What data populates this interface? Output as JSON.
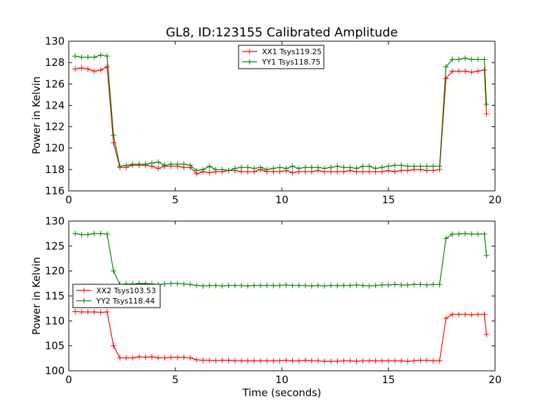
{
  "chart_data": [
    {
      "type": "line",
      "title": "GL8, ID:123155 Calibrated Amplitude",
      "xlabel": "",
      "ylabel": "Power in Kelvin",
      "xlim": [
        0,
        20
      ],
      "ylim": [
        116,
        130
      ],
      "xticks": [
        "0",
        "5",
        "10",
        "15",
        "20"
      ],
      "yticks": [
        "116",
        "118",
        "120",
        "122",
        "124",
        "126",
        "128",
        "130"
      ],
      "grid": false,
      "legend": "top-center",
      "x": [
        0.3,
        0.6,
        0.9,
        1.2,
        1.5,
        1.8,
        2.1,
        2.4,
        2.7,
        3.0,
        3.3,
        3.6,
        3.9,
        4.2,
        4.5,
        4.8,
        5.1,
        5.4,
        5.7,
        6.0,
        6.3,
        6.6,
        6.9,
        7.2,
        7.5,
        7.8,
        8.1,
        8.4,
        8.7,
        9.0,
        9.3,
        9.6,
        9.9,
        10.2,
        10.5,
        10.8,
        11.1,
        11.4,
        11.7,
        12.0,
        12.3,
        12.6,
        12.9,
        13.2,
        13.5,
        13.8,
        14.1,
        14.4,
        14.7,
        15.0,
        15.3,
        15.6,
        15.9,
        16.2,
        16.5,
        16.8,
        17.1,
        17.4,
        17.7,
        18.0,
        18.3,
        18.6,
        18.9,
        19.2,
        19.5,
        19.6
      ],
      "series": [
        {
          "name": "XX1 Tsys119.25",
          "color": "#ff0000",
          "values": [
            127.4,
            127.5,
            127.4,
            127.2,
            127.3,
            127.6,
            120.5,
            118.2,
            118.2,
            118.4,
            118.4,
            118.4,
            118.3,
            118.1,
            118.3,
            118.3,
            118.3,
            118.2,
            118.2,
            117.6,
            117.8,
            117.7,
            117.8,
            117.8,
            117.9,
            117.9,
            117.8,
            117.8,
            117.8,
            118.0,
            117.8,
            117.8,
            117.8,
            117.9,
            117.7,
            117.8,
            117.8,
            117.8,
            117.9,
            117.8,
            117.8,
            117.8,
            117.8,
            117.9,
            117.8,
            117.8,
            117.8,
            117.8,
            117.8,
            117.9,
            117.8,
            117.9,
            117.9,
            118.0,
            118.0,
            117.9,
            117.9,
            118.0,
            126.5,
            127.2,
            127.2,
            127.2,
            127.1,
            127.2,
            127.3,
            123.2
          ]
        },
        {
          "name": "YY1 Tsys118.75",
          "color": "#008000",
          "values": [
            128.6,
            128.5,
            128.5,
            128.5,
            128.7,
            128.6,
            121.2,
            118.3,
            118.4,
            118.5,
            118.5,
            118.5,
            118.6,
            118.7,
            118.4,
            118.5,
            118.5,
            118.5,
            118.4,
            117.9,
            118.0,
            118.3,
            118.0,
            118.0,
            117.9,
            118.1,
            118.2,
            118.2,
            118.1,
            118.2,
            118.0,
            118.1,
            118.2,
            118.1,
            118.3,
            118.1,
            118.2,
            118.2,
            118.2,
            118.1,
            118.2,
            118.3,
            118.2,
            118.2,
            118.1,
            118.3,
            118.3,
            118.1,
            118.2,
            118.3,
            118.4,
            118.4,
            118.3,
            118.3,
            118.3,
            118.3,
            118.3,
            118.3,
            127.6,
            128.3,
            128.3,
            128.4,
            128.3,
            128.3,
            128.3,
            124.1
          ]
        }
      ]
    },
    {
      "type": "line",
      "title": "",
      "xlabel": "Time (seconds)",
      "ylabel": "Power in Kelvin",
      "xlim": [
        0,
        20
      ],
      "ylim": [
        100,
        130
      ],
      "xticks": [
        "0",
        "5",
        "10",
        "15",
        "20"
      ],
      "yticks": [
        "100",
        "105",
        "110",
        "115",
        "120",
        "125",
        "130"
      ],
      "grid": false,
      "legend": "center-left",
      "x": [
        0.3,
        0.6,
        0.9,
        1.2,
        1.5,
        1.8,
        2.1,
        2.4,
        2.7,
        3.0,
        3.3,
        3.6,
        3.9,
        4.2,
        4.5,
        4.8,
        5.1,
        5.4,
        5.7,
        6.0,
        6.3,
        6.6,
        6.9,
        7.2,
        7.5,
        7.8,
        8.1,
        8.4,
        8.7,
        9.0,
        9.3,
        9.6,
        9.9,
        10.2,
        10.5,
        10.8,
        11.1,
        11.4,
        11.7,
        12.0,
        12.3,
        12.6,
        12.9,
        13.2,
        13.5,
        13.8,
        14.1,
        14.4,
        14.7,
        15.0,
        15.3,
        15.6,
        15.9,
        16.2,
        16.5,
        16.8,
        17.1,
        17.4,
        17.7,
        18.0,
        18.3,
        18.6,
        18.9,
        19.2,
        19.5,
        19.6
      ],
      "series": [
        {
          "name": "XX2 Tsys103.53",
          "color": "#ff0000",
          "values": [
            111.9,
            111.8,
            111.8,
            111.8,
            111.7,
            111.8,
            105.0,
            102.6,
            102.6,
            102.6,
            102.8,
            102.7,
            102.8,
            102.6,
            102.6,
            102.7,
            102.7,
            102.7,
            102.6,
            102.2,
            102.1,
            102.1,
            102.0,
            102.1,
            102.1,
            102.0,
            102.0,
            102.0,
            102.0,
            102.0,
            102.0,
            102.0,
            102.0,
            102.1,
            102.0,
            102.0,
            102.1,
            102.0,
            102.0,
            101.9,
            101.9,
            101.9,
            102.0,
            102.0,
            101.9,
            102.0,
            102.0,
            102.0,
            102.0,
            102.0,
            102.0,
            102.0,
            101.9,
            102.0,
            102.1,
            102.1,
            102.0,
            102.0,
            110.5,
            111.3,
            111.3,
            111.3,
            111.2,
            111.3,
            111.3,
            107.3
          ]
        },
        {
          "name": "YY2 Tsys118.44",
          "color": "#008000",
          "values": [
            127.5,
            127.3,
            127.3,
            127.5,
            127.5,
            127.4,
            120.0,
            117.3,
            117.4,
            117.4,
            117.5,
            117.5,
            117.4,
            117.3,
            117.4,
            117.5,
            117.5,
            117.4,
            117.3,
            117.1,
            117.0,
            117.1,
            117.1,
            117.0,
            117.1,
            117.1,
            117.1,
            117.0,
            117.1,
            117.1,
            117.1,
            117.1,
            117.1,
            117.2,
            117.1,
            117.1,
            117.1,
            117.0,
            117.1,
            117.0,
            117.1,
            117.1,
            117.1,
            117.1,
            117.2,
            117.1,
            117.0,
            117.1,
            117.2,
            117.2,
            117.3,
            117.2,
            117.2,
            117.3,
            117.3,
            117.2,
            117.3,
            117.3,
            126.5,
            127.4,
            127.4,
            127.5,
            127.4,
            127.4,
            127.4,
            123.1
          ]
        }
      ]
    }
  ]
}
